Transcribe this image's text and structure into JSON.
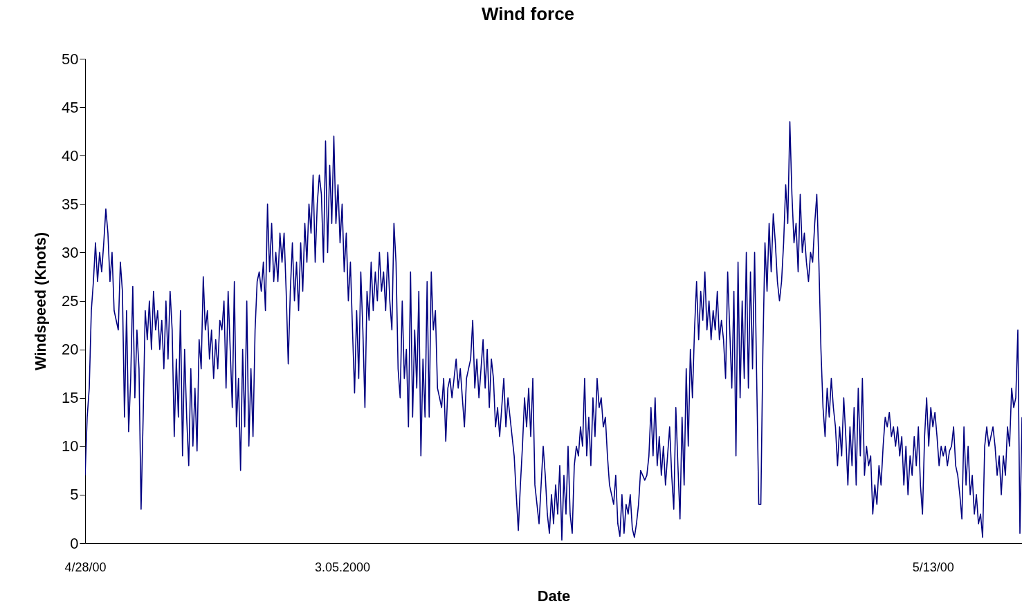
{
  "chart_data": {
    "type": "line",
    "title": "Wind force",
    "xlabel": "Date",
    "ylabel": "Windspeed (Knots)",
    "categories": [
      "4/28/00",
      null,
      null,
      null,
      null,
      null,
      null,
      null,
      null,
      null,
      null,
      null,
      null,
      null,
      null,
      null,
      null,
      null,
      null,
      null,
      null,
      null,
      null,
      null,
      null,
      null,
      null,
      null,
      null,
      null,
      null,
      null,
      null,
      null,
      null,
      null,
      null,
      null,
      null,
      null,
      null,
      null,
      null,
      null,
      null,
      null,
      null,
      null,
      null,
      null,
      null,
      null,
      null,
      null,
      null,
      null,
      null,
      null,
      null,
      null,
      null,
      null,
      null,
      null,
      null,
      null,
      null,
      null,
      null,
      null,
      null,
      null,
      null,
      null,
      null,
      null,
      null,
      null,
      null,
      null,
      null,
      null,
      null,
      null,
      null,
      null,
      null,
      null,
      null,
      null,
      null,
      null,
      null,
      null,
      null,
      null,
      null,
      null,
      null,
      null,
      null,
      null,
      null,
      null,
      null,
      null,
      null,
      null,
      null,
      null,
      null,
      null,
      null,
      null,
      null,
      null,
      null,
      null,
      null,
      null,
      null,
      null,
      null,
      null,
      "3.05.2000",
      null,
      null,
      null,
      null,
      null,
      null,
      null,
      null,
      null,
      null,
      null,
      null,
      null,
      null,
      null,
      null,
      null,
      null,
      null,
      null,
      null,
      null,
      null,
      null,
      null,
      null,
      null,
      null,
      null,
      null,
      null,
      null,
      null,
      null,
      null,
      null,
      null,
      null,
      null,
      null,
      null,
      null,
      null,
      null,
      null,
      null,
      null,
      null,
      null,
      null,
      null,
      null,
      null,
      null,
      null,
      null,
      null,
      null,
      null,
      null,
      null,
      null,
      null,
      null,
      null,
      null,
      null,
      null,
      null,
      null,
      null,
      null,
      null,
      null,
      null,
      null,
      null,
      null,
      null,
      null,
      null,
      null,
      null,
      null,
      null,
      null,
      null,
      null,
      null,
      null,
      null,
      null,
      null,
      null,
      null,
      null,
      null,
      null,
      null,
      null,
      null,
      null,
      null,
      null,
      null,
      null,
      null,
      null,
      null,
      null,
      null,
      null,
      null,
      null,
      null,
      null,
      null,
      null,
      null,
      null,
      null,
      null,
      null,
      null,
      null,
      null,
      null,
      null,
      null,
      null,
      null,
      null,
      null,
      null,
      null,
      null,
      null,
      null,
      null,
      null,
      null,
      null,
      null,
      null,
      null,
      null,
      null,
      null,
      null,
      null,
      null,
      null,
      null,
      null,
      null,
      null,
      null,
      null,
      null,
      null,
      null,
      null,
      null,
      null,
      null,
      null,
      null,
      null,
      null,
      null,
      null,
      null,
      null,
      null,
      null,
      null,
      null,
      null,
      null,
      null,
      null,
      null,
      null,
      null,
      null,
      null,
      null,
      null,
      null,
      null,
      null,
      null,
      null,
      null,
      null,
      null,
      null,
      null,
      null,
      null,
      null,
      null,
      null,
      null,
      null,
      null,
      null,
      null,
      null,
      null,
      null,
      null,
      null,
      null,
      null,
      null,
      null,
      null,
      null,
      null,
      null,
      null,
      null,
      null,
      null,
      null,
      null,
      null,
      null,
      null,
      null,
      null,
      null,
      null,
      null,
      null,
      null,
      null,
      null,
      null,
      null,
      null,
      null,
      null,
      null,
      null,
      null,
      null,
      null,
      null,
      null,
      null,
      null,
      null,
      null,
      null,
      null,
      null,
      null,
      null,
      null,
      null,
      null,
      null,
      null,
      null,
      null,
      null,
      null,
      null,
      null,
      null,
      null,
      null,
      null,
      null,
      null,
      null,
      null,
      null,
      null,
      null,
      null,
      null,
      "5/13/00",
      null,
      null,
      null,
      null,
      null,
      null,
      null,
      null,
      null,
      null,
      null,
      null,
      null,
      null,
      null,
      null,
      null,
      null,
      null,
      null,
      null,
      null,
      null,
      null,
      null,
      null,
      null,
      null,
      null,
      null,
      null,
      null,
      null,
      null,
      null,
      null,
      null,
      null,
      null,
      null,
      null,
      null,
      null
    ],
    "series": [
      {
        "color": "#000080",
        "values": [
          7,
          13,
          16,
          24,
          27,
          31,
          27,
          30,
          28,
          31,
          34.5,
          32,
          27,
          30,
          24,
          23,
          22,
          29,
          26,
          13,
          24,
          11.5,
          17,
          26.5,
          15,
          22,
          18,
          3.5,
          13,
          24,
          21,
          25,
          20,
          26,
          22,
          24,
          20,
          23,
          18,
          25,
          19,
          26,
          22,
          11,
          19,
          13,
          24,
          9,
          20,
          13,
          8,
          18,
          10,
          16,
          9.5,
          21,
          18,
          27.5,
          22,
          24,
          19,
          22,
          17,
          21,
          18,
          23,
          22,
          25,
          16,
          26,
          20,
          14,
          27,
          12,
          17,
          7.5,
          20,
          12,
          25,
          10,
          18,
          11,
          22,
          27,
          28,
          26,
          29,
          24,
          35,
          28,
          33,
          27,
          30,
          27,
          32,
          29,
          32,
          26,
          18.5,
          26,
          31,
          25,
          29,
          24,
          31,
          26,
          33,
          29,
          35,
          32,
          38,
          29,
          35,
          38,
          36,
          29,
          41.5,
          30,
          39,
          33,
          42,
          33,
          37,
          31,
          35,
          28,
          32,
          25,
          29,
          22,
          15.5,
          24,
          17,
          28,
          22,
          14,
          26,
          23,
          29,
          24,
          28,
          25,
          30,
          26,
          28,
          24,
          30,
          25,
          22,
          33,
          29,
          18,
          15,
          25,
          17,
          20,
          12,
          28,
          13,
          22,
          16,
          26,
          9,
          19,
          13,
          27,
          13,
          28,
          22,
          24,
          16,
          15,
          14,
          17,
          10.5,
          16,
          17,
          15,
          17,
          19,
          16,
          18,
          15,
          12,
          17,
          18,
          19,
          23,
          16,
          19,
          15,
          18,
          21,
          16,
          20,
          14,
          19,
          17,
          12,
          14,
          11,
          14,
          17,
          12,
          15,
          13,
          11,
          9,
          5,
          1.3,
          6,
          10,
          15,
          12,
          16,
          11,
          17,
          6,
          4,
          2,
          6,
          10,
          7,
          3,
          1,
          5,
          2,
          6,
          3,
          8,
          0.3,
          7,
          3,
          10,
          3,
          1,
          8,
          10,
          9,
          12,
          10,
          17,
          9,
          13,
          8,
          15,
          11,
          17,
          14,
          15,
          12,
          13,
          9,
          6,
          5,
          4,
          7,
          2,
          0.7,
          5,
          1,
          4,
          3,
          5,
          1.5,
          0.6,
          2,
          4,
          7.5,
          7,
          6.5,
          7,
          9,
          14,
          9,
          15,
          8,
          11,
          7,
          10,
          6,
          9,
          12,
          7,
          3.5,
          14,
          8,
          2.5,
          13,
          6,
          18,
          10,
          20,
          15,
          22,
          27,
          21,
          26,
          23,
          28,
          22,
          25,
          21,
          24,
          22,
          26,
          21,
          23,
          21,
          17,
          28,
          22,
          16,
          26,
          9,
          29,
          15,
          25,
          17,
          30,
          16,
          28,
          18,
          30,
          17,
          4,
          4,
          20,
          31,
          26,
          33,
          28,
          34,
          31,
          27,
          25,
          27,
          31,
          37,
          33,
          43.5,
          36,
          31,
          33,
          28,
          36,
          30,
          32,
          29,
          27,
          30,
          29,
          33,
          36,
          29,
          20,
          14,
          11,
          16,
          13,
          17,
          14,
          12,
          8,
          12,
          9,
          15,
          11,
          6,
          12,
          8,
          14,
          6,
          16,
          9,
          17,
          7,
          10,
          8,
          9,
          3,
          6,
          4,
          8,
          6,
          10,
          13,
          12,
          13.5,
          11,
          12,
          10,
          12,
          9,
          11,
          6,
          10,
          5,
          9,
          7,
          11,
          8,
          12,
          6,
          3,
          11,
          15,
          10,
          14,
          12,
          13.5,
          11,
          8,
          10,
          9,
          10,
          8,
          9.5,
          10,
          12,
          8,
          7,
          5,
          2.5,
          12,
          6,
          10,
          5,
          7,
          3,
          5,
          2,
          3,
          0.6,
          10,
          12,
          10,
          11,
          12,
          10,
          7,
          9,
          5,
          9,
          7,
          12,
          10,
          16,
          14,
          15,
          22,
          1,
          13
        ]
      }
    ],
    "ylim": [
      0,
      50
    ],
    "yticks": [
      0,
      5,
      10,
      15,
      20,
      25,
      30,
      35,
      40,
      45,
      50
    ]
  }
}
